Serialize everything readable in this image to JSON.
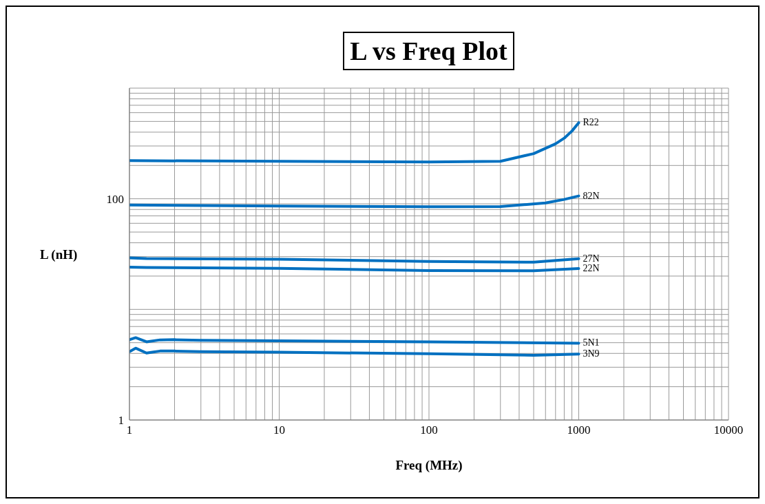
{
  "chart_data": {
    "type": "line",
    "title": "L vs Freq Plot",
    "xlabel": "Freq (MHz)",
    "ylabel": "L (nH)",
    "log": "xy",
    "grid": true,
    "legend": false,
    "marker": "none",
    "line_style": "solid",
    "xlim": [
      1,
      10000
    ],
    "xticks": [
      1,
      {
        "value": 2,
        "label": null
      },
      {
        "value": 3,
        "label": null
      },
      {
        "value": 4,
        "label": null
      },
      {
        "value": 5,
        "label": null
      },
      {
        "value": 6,
        "label": null
      },
      {
        "value": 7,
        "label": null
      },
      {
        "value": 8,
        "label": null
      },
      {
        "value": 9,
        "label": null
      },
      10,
      {
        "value": 20,
        "label": null
      },
      {
        "value": 30,
        "label": null
      },
      {
        "value": 40,
        "label": null
      },
      {
        "value": 50,
        "label": null
      },
      {
        "value": 60,
        "label": null
      },
      {
        "value": 70,
        "label": null
      },
      {
        "value": 80,
        "label": null
      },
      {
        "value": 90,
        "label": null
      },
      100,
      {
        "value": 200,
        "label": null
      },
      {
        "value": 300,
        "label": null
      },
      {
        "value": 400,
        "label": null
      },
      {
        "value": 500,
        "label": null
      },
      {
        "value": 600,
        "label": null
      },
      {
        "value": 700,
        "label": null
      },
      {
        "value": 800,
        "label": null
      },
      {
        "value": 900,
        "label": null
      },
      1000,
      {
        "value": 2000,
        "label": null
      },
      {
        "value": 3000,
        "label": null
      },
      {
        "value": 4000,
        "label": null
      },
      {
        "value": 5000,
        "label": null
      },
      {
        "value": 6000,
        "label": null
      },
      {
        "value": 7000,
        "label": null
      },
      {
        "value": 8000,
        "label": null
      },
      {
        "value": 9000,
        "label": null
      },
      10000
    ],
    "ylim": [
      1,
      1000
    ],
    "yticks": [
      1,
      {
        "value": 2,
        "label": null
      },
      {
        "value": 3,
        "label": null
      },
      {
        "value": 4,
        "label": null
      },
      {
        "value": 5,
        "label": null
      },
      {
        "value": 6,
        "label": null
      },
      {
        "value": 7,
        "label": null
      },
      {
        "value": 8,
        "label": null
      },
      {
        "value": 9,
        "label": null
      },
      {
        "value": 10,
        "label": null
      },
      {
        "value": 20,
        "label": null
      },
      {
        "value": 30,
        "label": null
      },
      {
        "value": 40,
        "label": null
      },
      {
        "value": 50,
        "label": null
      },
      {
        "value": 60,
        "label": null
      },
      {
        "value": 70,
        "label": null
      },
      {
        "value": 80,
        "label": null
      },
      {
        "value": 90,
        "label": null
      },
      100,
      {
        "value": 200,
        "label": null
      },
      {
        "value": 300,
        "label": null
      },
      {
        "value": 400,
        "label": null
      },
      {
        "value": 500,
        "label": null
      },
      {
        "value": 600,
        "label": null
      },
      {
        "value": 700,
        "label": null
      },
      {
        "value": 800,
        "label": null
      },
      {
        "value": 900,
        "label": null
      },
      {
        "value": 1000,
        "label": null
      }
    ],
    "series": [
      {
        "name": "R22",
        "color": "#0070c0",
        "x": [
          1,
          10,
          100,
          300,
          500,
          700,
          800,
          900,
          1000
        ],
        "values": [
          221,
          218,
          215,
          218,
          256,
          314,
          353,
          409,
          487
        ]
      },
      {
        "name": "82N",
        "color": "#0070c0",
        "x": [
          1,
          10,
          100,
          300,
          600,
          800,
          1000
        ],
        "values": [
          87.7,
          86,
          84.6,
          85,
          91.6,
          98.6,
          106
        ]
      },
      {
        "name": "27N",
        "color": "#0070c0",
        "x": [
          1,
          1.3,
          10,
          100,
          500,
          1000
        ],
        "values": [
          29.2,
          28.8,
          28.4,
          27.1,
          26.7,
          28.7
        ]
      },
      {
        "name": "22N",
        "color": "#0070c0",
        "x": [
          1,
          1.3,
          10,
          100,
          500,
          1000
        ],
        "values": [
          24.1,
          23.9,
          23.5,
          22.4,
          22.3,
          23.4
        ]
      },
      {
        "name": "5N1",
        "color": "#0070c0",
        "x": [
          1,
          1.1,
          1.3,
          1.6,
          2,
          3,
          10,
          100,
          1000
        ],
        "values": [
          5.32,
          5.55,
          5.09,
          5.3,
          5.32,
          5.25,
          5.2,
          5.09,
          4.95
        ]
      },
      {
        "name": "3N9",
        "color": "#0070c0",
        "x": [
          1,
          1.1,
          1.3,
          1.6,
          2,
          3,
          10,
          100,
          500,
          1000
        ],
        "values": [
          4.15,
          4.46,
          4.03,
          4.2,
          4.2,
          4.15,
          4.1,
          3.97,
          3.85,
          3.95
        ]
      }
    ]
  }
}
